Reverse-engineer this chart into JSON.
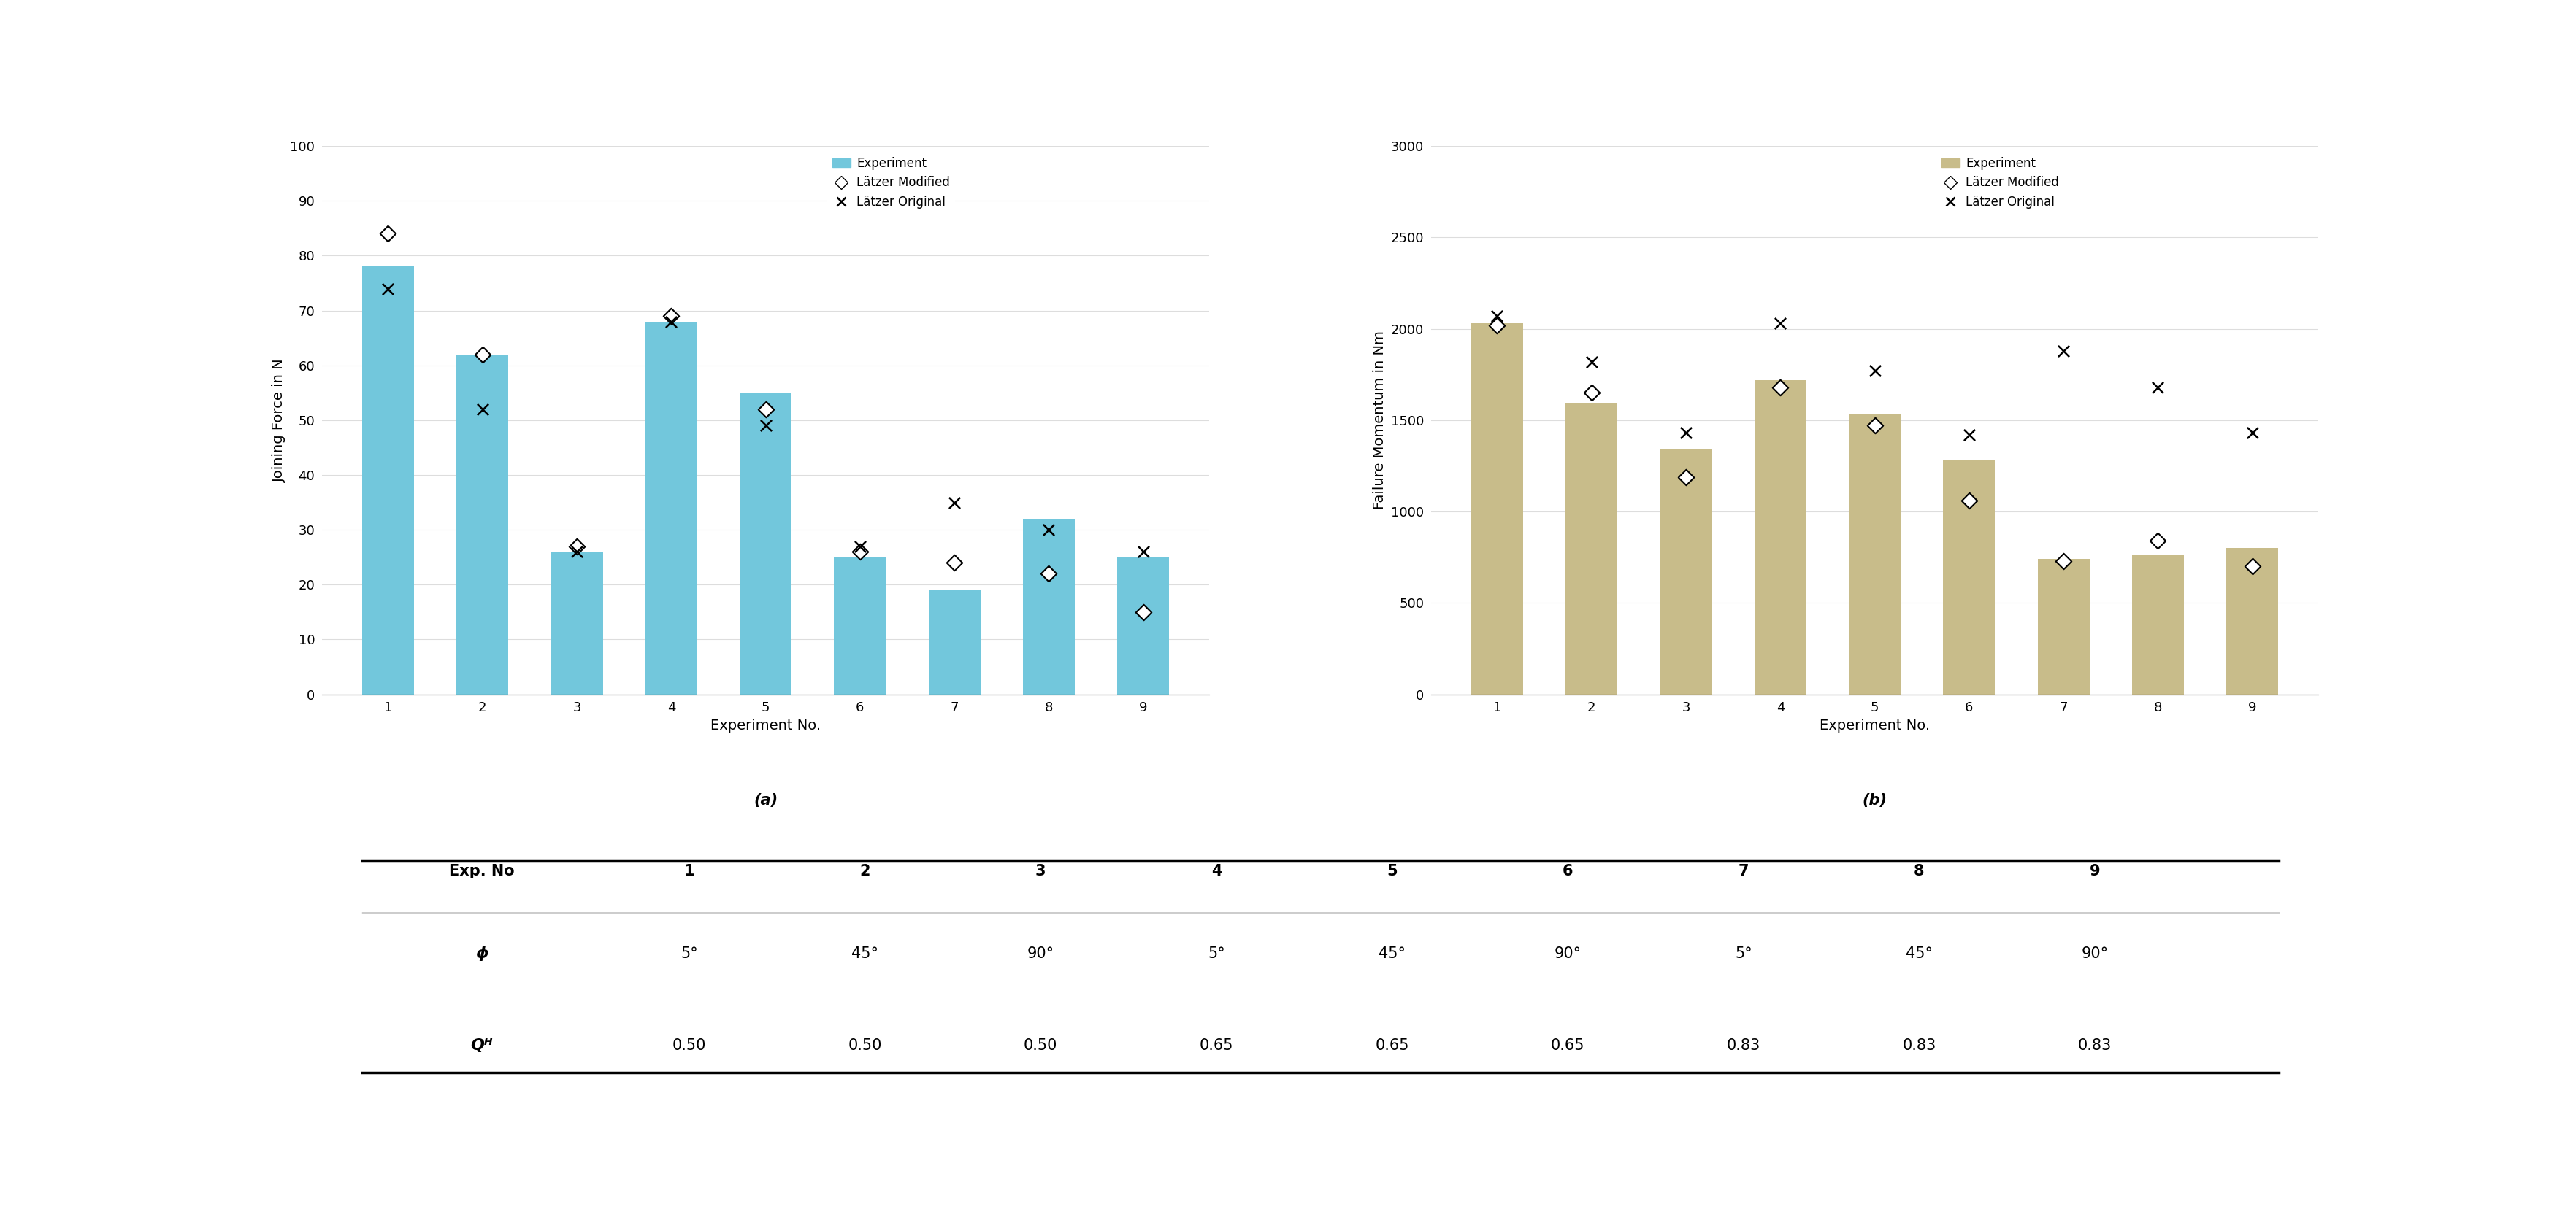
{
  "exp_nos": [
    1,
    2,
    3,
    4,
    5,
    6,
    7,
    8,
    9
  ],
  "chart_a": {
    "title": "(a)",
    "ylabel": "Joining Force in N",
    "xlabel": "Experiment No.",
    "ylim": [
      0,
      100
    ],
    "yticks": [
      0,
      10,
      20,
      30,
      40,
      50,
      60,
      70,
      80,
      90,
      100
    ],
    "bar_color": "#72C7DC",
    "bar_values": [
      78,
      62,
      26,
      68,
      55,
      25,
      19,
      32,
      25
    ],
    "latzer_modified": [
      84,
      62,
      27,
      69,
      52,
      26,
      24,
      22,
      15
    ],
    "latzer_original": [
      74,
      52,
      26,
      68,
      49,
      27,
      35,
      30,
      26
    ]
  },
  "chart_b": {
    "title": "(b)",
    "ylabel": "Failure Momentum in Nm",
    "xlabel": "Experiment No.",
    "ylim": [
      0,
      3000
    ],
    "yticks": [
      0,
      500,
      1000,
      1500,
      2000,
      2500,
      3000
    ],
    "bar_color": "#C8BC8A",
    "bar_values": [
      2030,
      1590,
      1340,
      1720,
      1530,
      1280,
      740,
      760,
      800
    ],
    "latzer_modified": [
      2020,
      1650,
      1190,
      1680,
      1470,
      1060,
      730,
      840,
      700
    ],
    "latzer_original": [
      2070,
      1820,
      1430,
      2030,
      1770,
      1420,
      1880,
      1680,
      1430
    ]
  },
  "table": {
    "col_header": [
      "Exp. No",
      "1",
      "2",
      "3",
      "4",
      "5",
      "6",
      "7",
      "8",
      "9"
    ],
    "row1_label": "ϕ",
    "row1_values": [
      "5°",
      "45°",
      "90°",
      "5°",
      "45°",
      "90°",
      "5°",
      "45°",
      "90°"
    ],
    "row2_label": "Qᴴ",
    "row2_values": [
      "0.50",
      "0.50",
      "0.50",
      "0.65",
      "0.65",
      "0.65",
      "0.83",
      "0.83",
      "0.83"
    ]
  },
  "legend_labels": [
    "Experiment",
    "Lätzer Modified",
    "Lätzer Original"
  ],
  "background_color": "#ffffff",
  "grid_color": "#dddddd"
}
